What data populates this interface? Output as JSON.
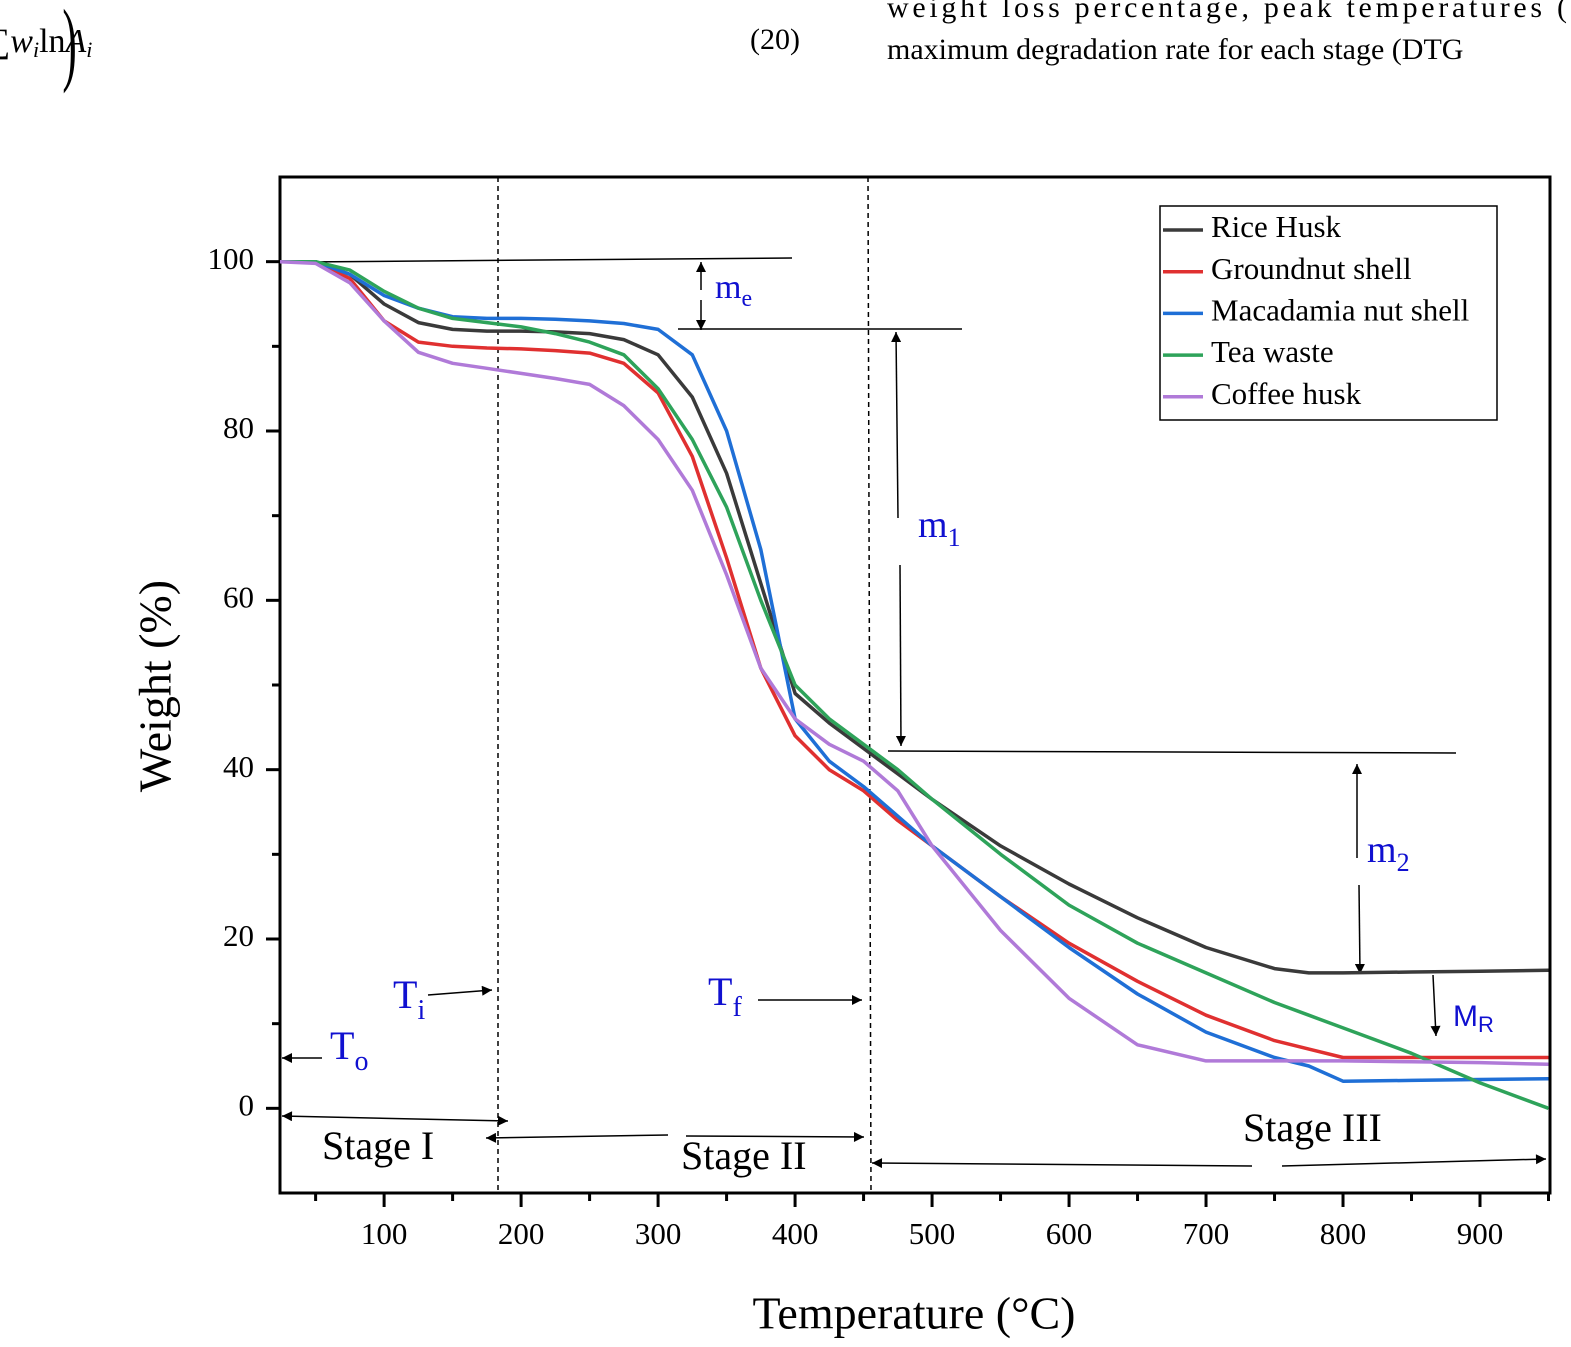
{
  "header": {
    "line1": "weight loss percentage, peak temperatures (",
    "line2": "maximum degradation rate for each stage (DTG",
    "equation_number": "(20)",
    "equation": {
      "sum": "∑",
      "w": "w",
      "w_sub": "i",
      "ln": "ln",
      "a": "A",
      "a_sub": "i",
      "close": ")"
    }
  },
  "chart_data": {
    "type": "line",
    "x_label": "Temperature (°C)",
    "y_label": "Weight (%)",
    "x": [
      24,
      50,
      75,
      100,
      125,
      150,
      175,
      200,
      225,
      250,
      275,
      300,
      325,
      350,
      375,
      400,
      425,
      450,
      475,
      500,
      550,
      600,
      650,
      700,
      750,
      775,
      800,
      850,
      900,
      950
    ],
    "series": [
      {
        "name": "Rice Husk",
        "color": "#3a3a3a",
        "values": [
          100,
          100,
          98.5,
          95,
          92.8,
          92,
          91.8,
          91.8,
          91.7,
          91.5,
          90.8,
          89,
          84,
          75,
          62,
          49,
          45.5,
          42.5,
          39.5,
          36.5,
          31,
          26.5,
          22.5,
          19,
          16.5,
          16,
          16,
          16.1,
          16.2,
          16.3
        ]
      },
      {
        "name": "Groundnut shell",
        "color": "#e03030",
        "values": [
          100,
          100,
          98,
          93,
          90.5,
          90,
          89.8,
          89.7,
          89.5,
          89.2,
          88,
          84.5,
          77,
          65,
          52,
          44,
          40,
          37.5,
          34,
          31,
          25,
          19.5,
          15,
          11,
          8,
          7,
          6,
          6,
          6,
          6
        ]
      },
      {
        "name": "Macadamia nut shell",
        "color": "#1f6fd6",
        "values": [
          100,
          100,
          98.5,
          96,
          94.5,
          93.5,
          93.3,
          93.3,
          93.2,
          93,
          92.7,
          92,
          89,
          80,
          66,
          46,
          41,
          38,
          34.5,
          31,
          25,
          19,
          13.5,
          9,
          6,
          5,
          3.2,
          3.3,
          3.4,
          3.5
        ]
      },
      {
        "name": "Tea waste",
        "color": "#2ea35a",
        "values": [
          100,
          100,
          99,
          96.5,
          94.5,
          93.3,
          92.8,
          92.3,
          91.5,
          90.5,
          89,
          85,
          79,
          71,
          60,
          50,
          46,
          43,
          40,
          36.5,
          30,
          24,
          19.5,
          16,
          12.5,
          11,
          9.5,
          6.5,
          3,
          0
        ]
      },
      {
        "name": "Coffee husk",
        "color": "#b07ad8",
        "values": [
          100,
          99.8,
          97.5,
          93,
          89.3,
          88,
          87.4,
          86.8,
          86.2,
          85.5,
          83,
          79,
          73,
          63,
          52,
          46,
          43,
          41,
          37.5,
          31,
          21,
          13,
          7.5,
          5.6,
          5.6,
          5.6,
          5.6,
          5.5,
          5.4,
          5.2
        ]
      }
    ],
    "xlim": [
      24,
      950
    ],
    "ylim": [
      -10,
      110
    ],
    "xticks": [
      100,
      200,
      300,
      400,
      500,
      600,
      700,
      800,
      900
    ],
    "yticks": [
      0,
      20,
      40,
      60,
      80,
      100
    ],
    "xminor": [
      50,
      150,
      250,
      350,
      450,
      550,
      650,
      750,
      850,
      950
    ],
    "yminor": [
      10,
      30,
      50,
      70,
      90
    ],
    "legend": "upper right",
    "annotations": {
      "me": {
        "text": "m",
        "sub": "e"
      },
      "m1": {
        "text": "m",
        "sub": "1"
      },
      "m2": {
        "text": "m",
        "sub": "2"
      },
      "mr": {
        "text": "M",
        "sub": "R"
      },
      "ti": {
        "text": "T",
        "sub": "i"
      },
      "tf": {
        "text": "T",
        "sub": "f"
      },
      "to": {
        "text": "T",
        "sub": "o"
      },
      "stage1": "Stage I",
      "stage2": "Stage II",
      "stage3": "Stage III"
    }
  }
}
